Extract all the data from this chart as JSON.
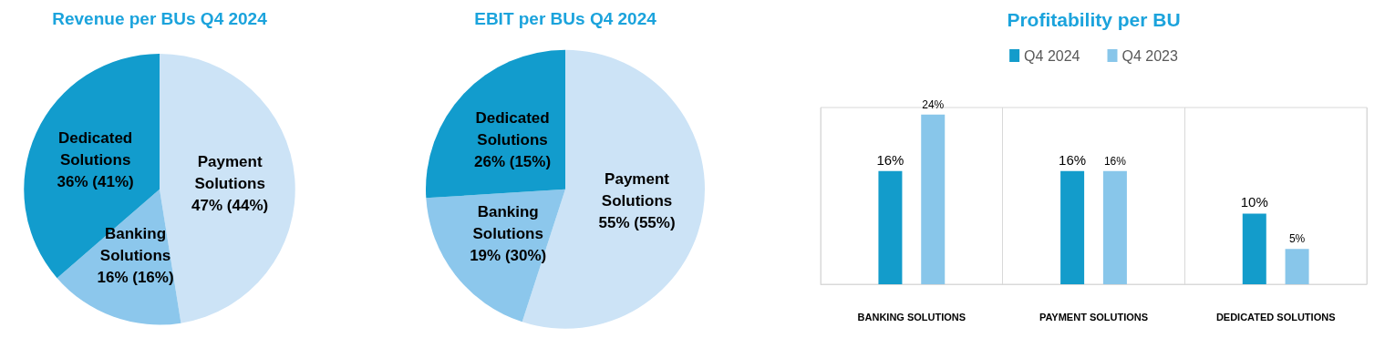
{
  "chart_data": [
    {
      "type": "pie",
      "title": "Revenue per BUs Q4 2024",
      "categories": [
        "Payment Solutions",
        "Banking Solutions",
        "Dedicated Solutions"
      ],
      "values": [
        47,
        16,
        36
      ],
      "value_labels": [
        "47% (44%)",
        "16% (16%)",
        "36% (41%)"
      ],
      "colors": [
        "#cce3f6",
        "#8cc7ec",
        "#129ccd"
      ]
    },
    {
      "type": "pie",
      "title": "EBIT per BUs Q4 2024",
      "categories": [
        "Payment Solutions",
        "Banking Solutions",
        "Dedicated Solutions"
      ],
      "values": [
        55,
        19,
        26
      ],
      "value_labels": [
        "55% (55%)",
        "19% (30%)",
        "26% (15%)"
      ],
      "colors": [
        "#cce3f6",
        "#8cc7ec",
        "#129ccd"
      ]
    },
    {
      "type": "bar",
      "title": "Profitability per BU",
      "categories": [
        "BANKING SOLUTIONS",
        "PAYMENT SOLUTIONS",
        "DEDICATED SOLUTIONS"
      ],
      "series": [
        {
          "name": "Q4 2024",
          "color": "#139ccb",
          "values": [
            16,
            16,
            10
          ],
          "value_labels": [
            "16%",
            "16%",
            "10%"
          ]
        },
        {
          "name": "Q4 2023",
          "color": "#88c6ea",
          "values": [
            24,
            16,
            5
          ],
          "value_labels": [
            "24%",
            "16%",
            "5%"
          ]
        }
      ],
      "legend": "top",
      "grid": "x",
      "tick_labels": "x"
    }
  ]
}
